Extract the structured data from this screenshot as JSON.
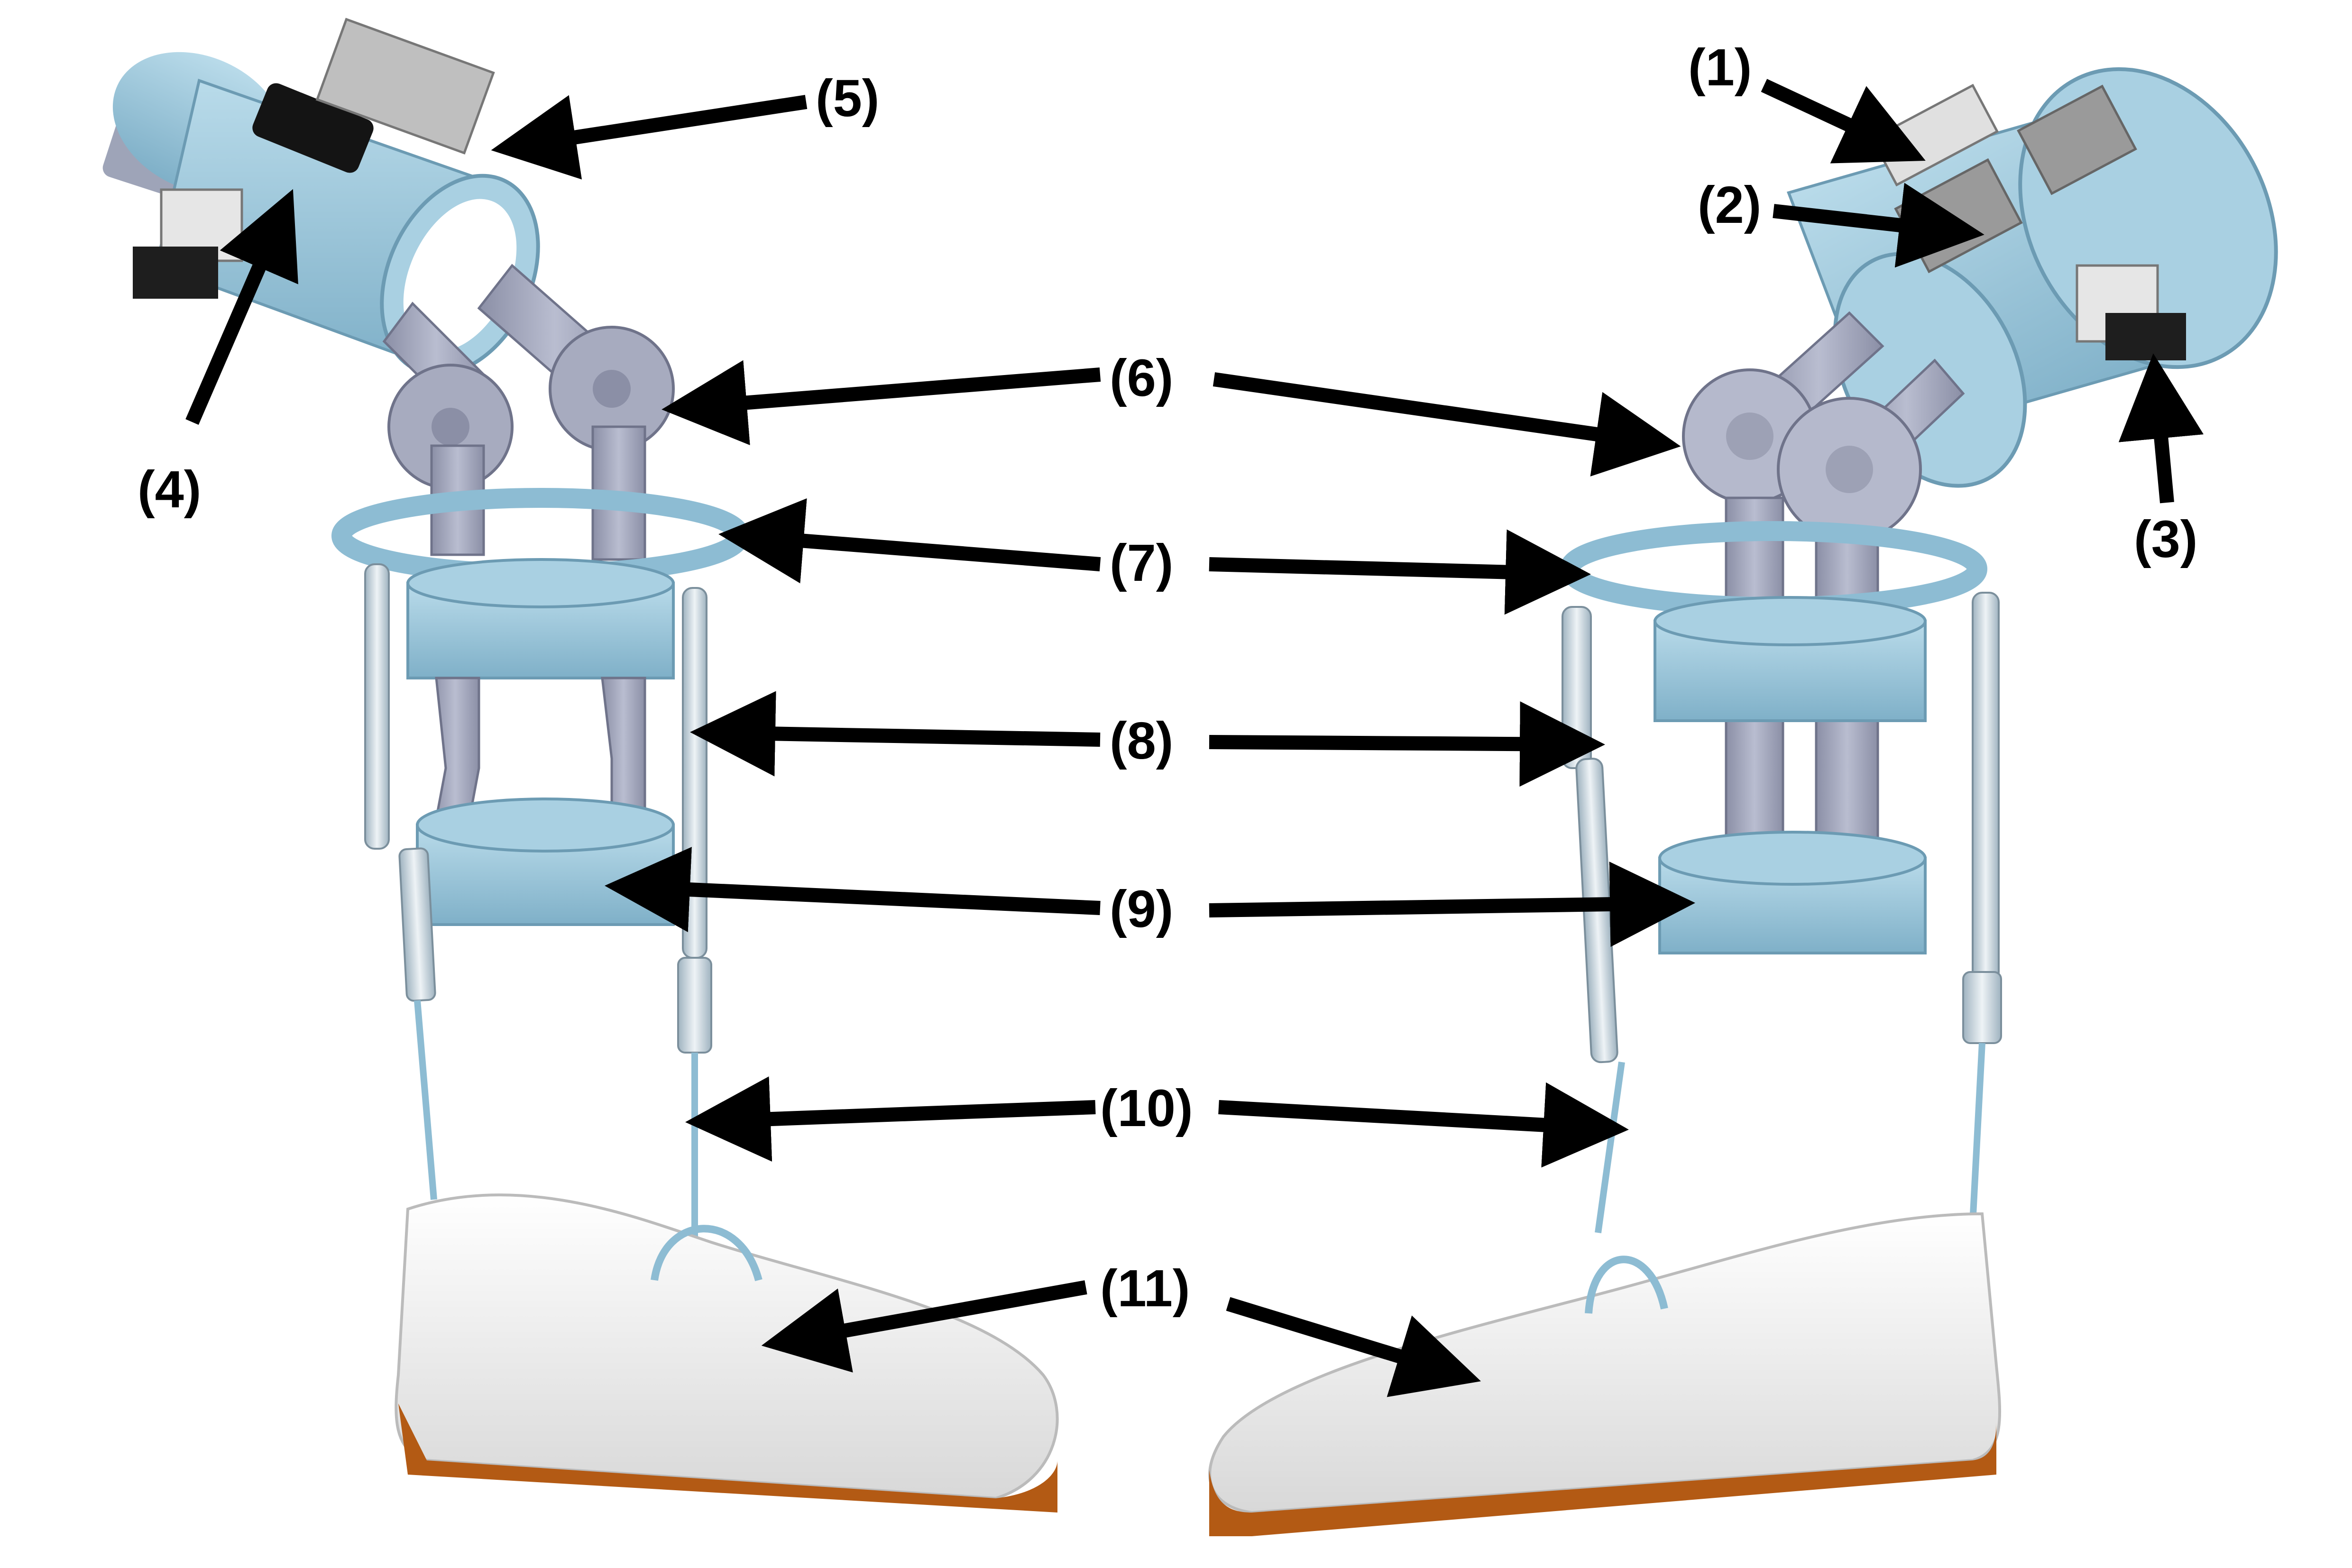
{
  "labels": {
    "l1": "(1)",
    "l2": "(2)",
    "l3": "(3)",
    "l4": "(4)",
    "l5": "(5)",
    "l6": "(6)",
    "l7": "(7)",
    "l8": "(8)",
    "l9": "(9)",
    "l10": "(10)",
    "l11": "(11)"
  },
  "colors": {
    "shell": "#9ec8dc",
    "shell_dark": "#7fb0c8",
    "metal": "#a8acc0",
    "metal_dark": "#8b8fa6",
    "shoe": "#f2f2f2",
    "sole": "#b35a14",
    "arrow": "#000000"
  }
}
